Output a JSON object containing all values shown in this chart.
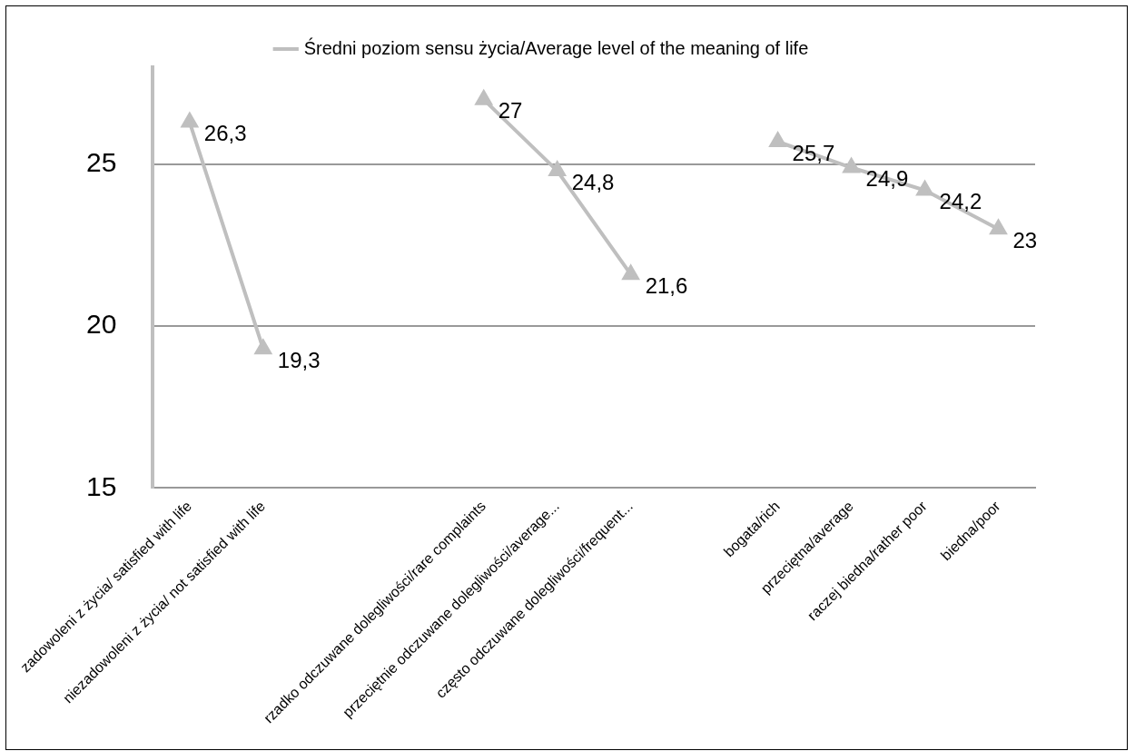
{
  "chart_data": {
    "type": "line",
    "categories": [
      "zadowoleni z życia/ satisfied with life",
      "niezadowoleni z życia/ not satisfied with life",
      null,
      null,
      "rzadko odczuwane dolegliwości/rare complaints",
      "przeciętnie odczuwane dolegliwości/average...",
      "często odczuwane dolegliwości/frequent...",
      null,
      "bogata/rich",
      "przeciętna/average",
      "raczej biedna/rather poor",
      "biedna/poor"
    ],
    "series": [
      {
        "name": "Średni poziom sensu życia/Average level of the meaning of life",
        "color": "#bfbfbf",
        "values": [
          26.3,
          19.3,
          null,
          null,
          27,
          24.8,
          21.6,
          null,
          25.7,
          24.9,
          24.2,
          23
        ],
        "value_labels": [
          "26,3",
          "19,3",
          null,
          null,
          "27",
          "24,8",
          "21,6",
          null,
          "25,7",
          "24,9",
          "24,2",
          "23"
        ]
      }
    ],
    "ylim": [
      15,
      28
    ],
    "yticks": [
      15,
      20,
      25
    ],
    "grid": "y",
    "legend": "top",
    "marker": "triangle",
    "line_style": "solid"
  }
}
